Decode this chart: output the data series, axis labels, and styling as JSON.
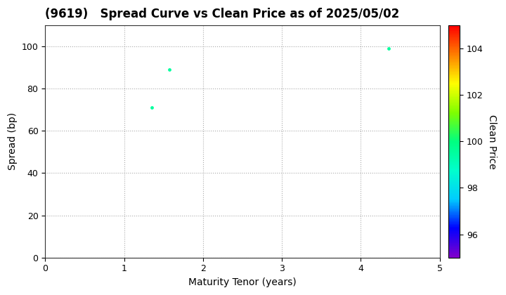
{
  "title": "(9619)   Spread Curve vs Clean Price as of 2025/05/02",
  "xlabel": "Maturity Tenor (years)",
  "ylabel": "Spread (bp)",
  "colorbar_label": "Clean Price",
  "points": [
    {
      "tenor": 1.35,
      "spread": 71,
      "price": 99.5
    },
    {
      "tenor": 1.57,
      "spread": 89,
      "price": 99.5
    },
    {
      "tenor": 4.35,
      "spread": 99,
      "price": 99.5
    }
  ],
  "xlim": [
    0,
    5
  ],
  "ylim": [
    0,
    110
  ],
  "xticks": [
    0,
    1,
    2,
    3,
    4,
    5
  ],
  "yticks": [
    0,
    20,
    40,
    60,
    80,
    100
  ],
  "cmap_vmin": 95,
  "cmap_vmax": 105,
  "colorbar_ticks": [
    96,
    98,
    100,
    102,
    104
  ],
  "grid_color": "#aaaaaa",
  "background_color": "#ffffff",
  "marker_size": 12,
  "title_fontsize": 12,
  "label_fontsize": 10,
  "tick_fontsize": 9
}
